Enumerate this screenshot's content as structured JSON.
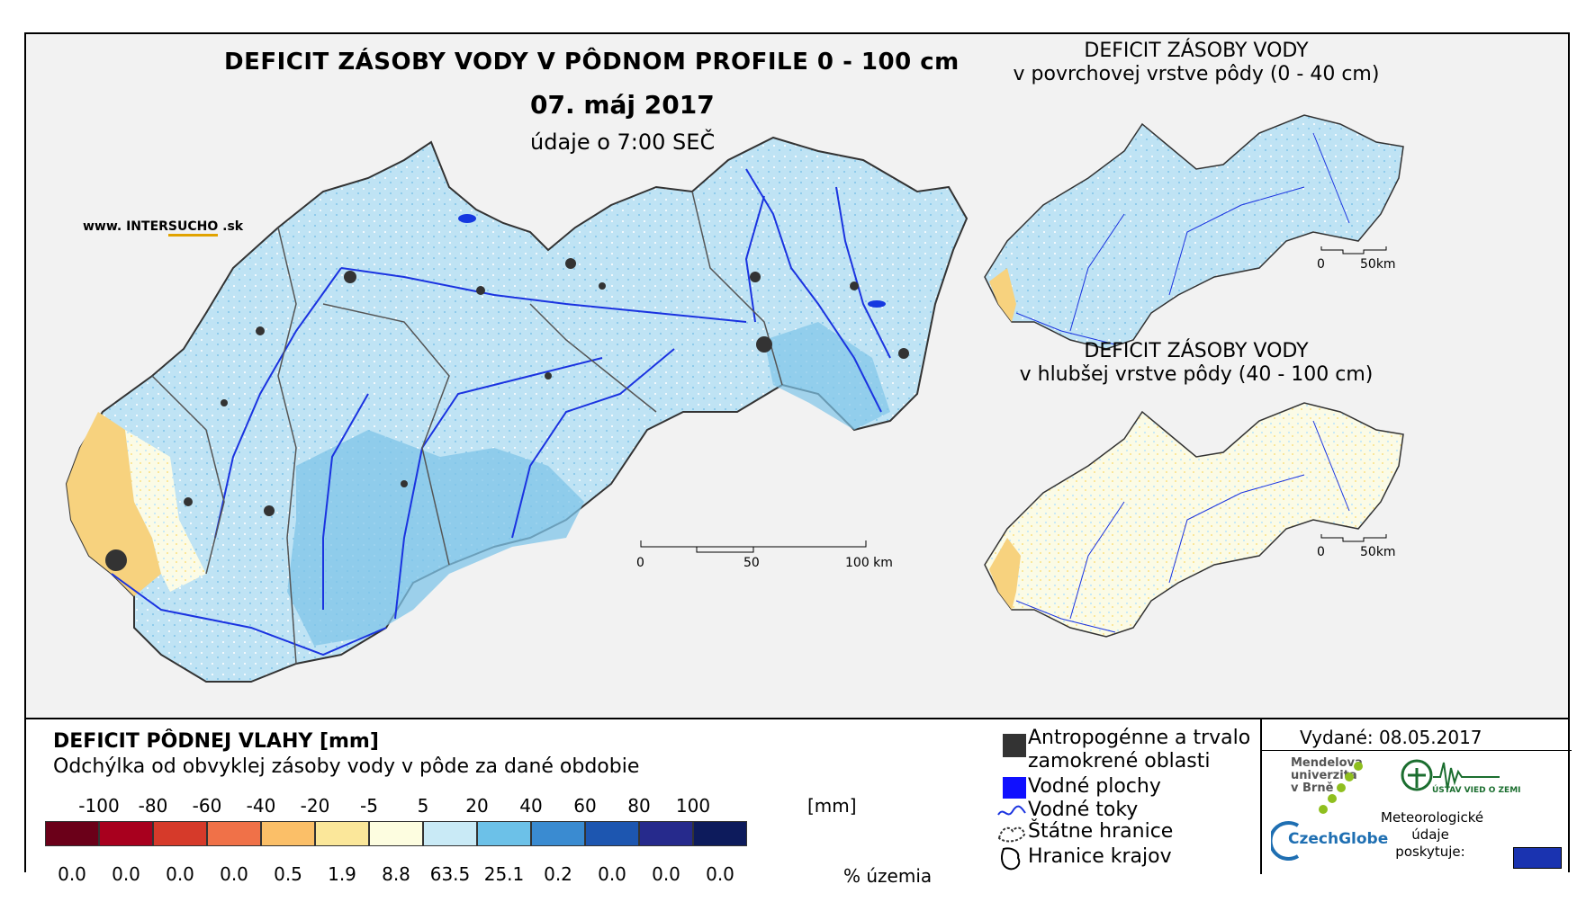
{
  "header": {
    "title": "DEFICIT ZÁSOBY VODY V PÔDNOM PROFILE 0 - 100 cm",
    "date": "07. máj 2017",
    "time": "údaje o 7:00 SEČ"
  },
  "website": {
    "prefix": "www. INTER",
    "accent": "SUCHO",
    "suffix": " .sk"
  },
  "insets": [
    {
      "title_line1": "DEFICIT ZÁSOBY VODY",
      "title_line2": "v povrchovej vrstve pôdy (0 - 40 cm)",
      "scale": [
        "0",
        "50km"
      ]
    },
    {
      "title_line1": "DEFICIT ZÁSOBY VODY",
      "title_line2": "v hlubšej vrstve pôdy (40 - 100 cm)",
      "scale": [
        "0",
        "50km"
      ]
    }
  ],
  "main_scale": [
    "0",
    "50",
    "100 km"
  ],
  "legend": {
    "title": "DEFICIT PÔDNEJ VLAHY [mm]",
    "subtitle": "Odchýlka od obvyklej zásoby vody v pôde za dané obdobie",
    "class_labels": [
      "-100",
      "-80",
      "-60",
      "-40",
      "-20",
      "-5",
      "5",
      "20",
      "40",
      "60",
      "80",
      "100"
    ],
    "unit": "[mm]",
    "colors": [
      "#6b0019",
      "#a8001e",
      "#d63a2a",
      "#f07148",
      "#fbbf68",
      "#fbe79a",
      "#fdfde0",
      "#c9eaf6",
      "#6cc1e8",
      "#3a8bd1",
      "#1d56b0",
      "#262a8c",
      "#0d1b5c"
    ],
    "percentages": [
      "0.0",
      "0.0",
      "0.0",
      "0.0",
      "0.5",
      "1.9",
      "8.8",
      "63.5",
      "25.1",
      "0.2",
      "0.0",
      "0.0",
      "0.0"
    ],
    "percent_label": "% územia"
  },
  "symbols": {
    "anthropogenic_line1": "Antropogénne a trvalo",
    "anthropogenic_line2": "zamokrené oblasti",
    "water_bodies": "Vodné plochy",
    "rivers": "Vodné toky",
    "state_border": "Štátne hranice",
    "regions": "Hranice krajov"
  },
  "footer": {
    "issued": "Vydané: 08.05.2017",
    "mendel": [
      "Mendelova",
      "univerzita",
      "v Brně"
    ],
    "czechglobe": "CzechGlobe",
    "uvz": "ÚSTAV VIED O ZEMI",
    "meteo": [
      "Meteorologické",
      "údaje",
      "poskytuje:"
    ]
  }
}
